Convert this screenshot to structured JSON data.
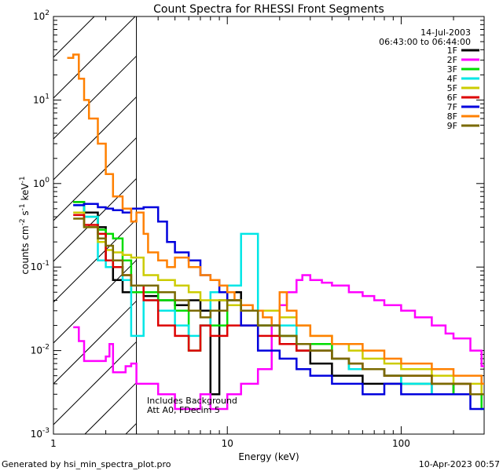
{
  "chart_data": {
    "type": "line",
    "title": "Count Spectra for RHESSI Front Segments",
    "xlabel": "Energy (keV)",
    "ylabel_main": "counts cm",
    "ylabel_sup1": "-2",
    "ylabel_mid": " s",
    "ylabel_sup2": "-1",
    "ylabel_end": " keV",
    "ylabel_sup3": "-1",
    "date": "14-Jul-2003",
    "time_range": "06:43:00 to 06:44:00",
    "annotation_line1": "Includes Background",
    "annotation_line2": "Att A0, FDecim 5",
    "footer_left": "Generated by hsi_min_spectra_plot.pro",
    "footer_right": "10-Apr-2023 00:57",
    "xscale": "log",
    "yscale": "log",
    "xlim": [
      1,
      300
    ],
    "ylim": [
      0.001,
      100
    ],
    "shaded_region_xlim": [
      1,
      3
    ],
    "x_ticks": [
      {
        "value": 1,
        "label": "1"
      },
      {
        "value": 10,
        "label": "10"
      },
      {
        "value": 100,
        "label": "100"
      }
    ],
    "y_ticks": [
      {
        "value": 0.001,
        "base": "10",
        "exp": "-3"
      },
      {
        "value": 0.01,
        "base": "10",
        "exp": "-2"
      },
      {
        "value": 0.1,
        "base": "10",
        "exp": "-1"
      },
      {
        "value": 1,
        "base": "10",
        "exp": "0"
      },
      {
        "value": 10,
        "base": "10",
        "exp": "1"
      },
      {
        "value": 100,
        "base": "10",
        "exp": "2"
      }
    ],
    "legend_placement": "top-right",
    "series": [
      {
        "name": "1F",
        "color": "#000000",
        "points": [
          [
            1.3,
            0.6
          ],
          [
            1.5,
            0.45
          ],
          [
            1.8,
            0.3
          ],
          [
            2.0,
            0.12
          ],
          [
            2.2,
            0.07
          ],
          [
            2.5,
            0.05
          ],
          [
            2.9,
            0.05
          ],
          [
            3.3,
            0.045
          ],
          [
            4,
            0.04
          ],
          [
            5,
            0.035
          ],
          [
            6,
            0.04
          ],
          [
            7,
            0.03
          ],
          [
            8,
            0.003
          ],
          [
            9,
            0.04
          ],
          [
            10,
            0.05
          ],
          [
            12,
            0.03
          ],
          [
            15,
            0.02
          ],
          [
            20,
            0.015
          ],
          [
            25,
            0.01
          ],
          [
            30,
            0.007
          ],
          [
            40,
            0.005
          ],
          [
            50,
            0.005
          ],
          [
            60,
            0.004
          ],
          [
            80,
            0.004
          ],
          [
            100,
            0.004
          ],
          [
            150,
            0.003
          ],
          [
            200,
            0.004
          ],
          [
            250,
            0.003
          ],
          [
            290,
            0.003
          ]
        ]
      },
      {
        "name": "2F",
        "color": "#ff00ff",
        "points": [
          [
            1.3,
            0.019
          ],
          [
            1.4,
            0.013
          ],
          [
            1.5,
            0.0075
          ],
          [
            1.8,
            0.0075
          ],
          [
            2.0,
            0.0085
          ],
          [
            2.1,
            0.012
          ],
          [
            2.2,
            0.0055
          ],
          [
            2.4,
            0.0055
          ],
          [
            2.6,
            0.0065
          ],
          [
            2.8,
            0.007
          ],
          [
            3.0,
            0.004
          ],
          [
            4,
            0.003
          ],
          [
            5,
            0.002
          ],
          [
            6,
            0.002
          ],
          [
            7,
            0.003
          ],
          [
            8,
            0.002
          ],
          [
            10,
            0.003
          ],
          [
            12,
            0.004
          ],
          [
            15,
            0.006
          ],
          [
            18,
            0.02
          ],
          [
            20,
            0.035
          ],
          [
            22,
            0.05
          ],
          [
            25,
            0.07
          ],
          [
            27,
            0.08
          ],
          [
            30,
            0.07
          ],
          [
            35,
            0.065
          ],
          [
            40,
            0.06
          ],
          [
            50,
            0.05
          ],
          [
            60,
            0.045
          ],
          [
            70,
            0.04
          ],
          [
            80,
            0.035
          ],
          [
            100,
            0.03
          ],
          [
            120,
            0.025
          ],
          [
            150,
            0.02
          ],
          [
            180,
            0.016
          ],
          [
            200,
            0.014
          ],
          [
            250,
            0.01
          ],
          [
            290,
            0.0065
          ]
        ]
      },
      {
        "name": "3F",
        "color": "#00dd00",
        "points": [
          [
            1.3,
            0.6
          ],
          [
            1.5,
            0.4
          ],
          [
            1.8,
            0.28
          ],
          [
            2.0,
            0.25
          ],
          [
            2.2,
            0.22
          ],
          [
            2.5,
            0.12
          ],
          [
            2.8,
            0.05
          ],
          [
            3.3,
            0.05
          ],
          [
            4,
            0.04
          ],
          [
            5,
            0.03
          ],
          [
            6,
            0.01
          ],
          [
            7,
            0.02
          ],
          [
            8,
            0.02
          ],
          [
            10,
            0.04
          ],
          [
            12,
            0.03
          ],
          [
            15,
            0.02
          ],
          [
            20,
            0.015
          ],
          [
            25,
            0.012
          ],
          [
            30,
            0.012
          ],
          [
            40,
            0.008
          ],
          [
            50,
            0.006
          ],
          [
            60,
            0.006
          ],
          [
            80,
            0.005
          ],
          [
            100,
            0.004
          ],
          [
            150,
            0.004
          ],
          [
            200,
            0.003
          ],
          [
            250,
            0.003
          ],
          [
            290,
            0.002
          ]
        ]
      },
      {
        "name": "4F",
        "color": "#00e6e6",
        "points": [
          [
            1.3,
            0.55
          ],
          [
            1.5,
            0.4
          ],
          [
            1.8,
            0.12
          ],
          [
            2.0,
            0.1
          ],
          [
            2.2,
            0.1
          ],
          [
            2.5,
            0.07
          ],
          [
            2.8,
            0.015
          ],
          [
            3.3,
            0.04
          ],
          [
            4,
            0.03
          ],
          [
            5,
            0.02
          ],
          [
            6,
            0.015
          ],
          [
            7,
            0.02
          ],
          [
            8,
            0.05
          ],
          [
            10,
            0.06
          ],
          [
            12,
            0.25
          ],
          [
            15,
            0.03
          ],
          [
            20,
            0.02
          ],
          [
            25,
            0.012
          ],
          [
            30,
            0.01
          ],
          [
            40,
            0.008
          ],
          [
            50,
            0.006
          ],
          [
            60,
            0.006
          ],
          [
            80,
            0.005
          ],
          [
            100,
            0.004
          ],
          [
            150,
            0.003
          ],
          [
            200,
            0.003
          ],
          [
            250,
            0.003
          ],
          [
            290,
            0.003
          ]
        ]
      },
      {
        "name": "5F",
        "color": "#cccc00",
        "points": [
          [
            1.3,
            0.45
          ],
          [
            1.5,
            0.3
          ],
          [
            1.8,
            0.2
          ],
          [
            2.0,
            0.16
          ],
          [
            2.2,
            0.15
          ],
          [
            2.5,
            0.14
          ],
          [
            2.8,
            0.13
          ],
          [
            3.3,
            0.08
          ],
          [
            4,
            0.07
          ],
          [
            5,
            0.06
          ],
          [
            6,
            0.05
          ],
          [
            7,
            0.04
          ],
          [
            8,
            0.04
          ],
          [
            10,
            0.035
          ],
          [
            12,
            0.03
          ],
          [
            15,
            0.03
          ],
          [
            20,
            0.025
          ],
          [
            25,
            0.02
          ],
          [
            30,
            0.015
          ],
          [
            40,
            0.012
          ],
          [
            50,
            0.01
          ],
          [
            60,
            0.008
          ],
          [
            80,
            0.007
          ],
          [
            100,
            0.006
          ],
          [
            150,
            0.005
          ],
          [
            200,
            0.004
          ],
          [
            250,
            0.004
          ],
          [
            290,
            0.003
          ]
        ]
      },
      {
        "name": "6F",
        "color": "#dd0000",
        "points": [
          [
            1.3,
            0.42
          ],
          [
            1.5,
            0.32
          ],
          [
            1.8,
            0.25
          ],
          [
            2.0,
            0.12
          ],
          [
            2.2,
            0.1
          ],
          [
            2.5,
            0.08
          ],
          [
            2.8,
            0.06
          ],
          [
            3.3,
            0.04
          ],
          [
            4,
            0.02
          ],
          [
            5,
            0.015
          ],
          [
            6,
            0.01
          ],
          [
            7,
            0.02
          ],
          [
            8,
            0.015
          ],
          [
            10,
            0.02
          ],
          [
            12,
            0.02
          ],
          [
            15,
            0.015
          ],
          [
            20,
            0.012
          ],
          [
            25,
            0.01
          ],
          [
            30,
            0.01
          ],
          [
            40,
            0.008
          ],
          [
            50,
            0.007
          ],
          [
            60,
            0.006
          ],
          [
            80,
            0.005
          ],
          [
            100,
            0.005
          ],
          [
            150,
            0.004
          ],
          [
            200,
            0.004
          ],
          [
            250,
            0.003
          ],
          [
            290,
            0.003
          ]
        ]
      },
      {
        "name": "7F",
        "color": "#0000dd",
        "points": [
          [
            1.3,
            0.55
          ],
          [
            1.5,
            0.57
          ],
          [
            1.8,
            0.52
          ],
          [
            2.0,
            0.5
          ],
          [
            2.2,
            0.48
          ],
          [
            2.5,
            0.45
          ],
          [
            2.8,
            0.5
          ],
          [
            3.3,
            0.52
          ],
          [
            4,
            0.35
          ],
          [
            4.5,
            0.2
          ],
          [
            5,
            0.15
          ],
          [
            6,
            0.12
          ],
          [
            7,
            0.08
          ],
          [
            8,
            0.07
          ],
          [
            9,
            0.05
          ],
          [
            10,
            0.04
          ],
          [
            12,
            0.02
          ],
          [
            15,
            0.01
          ],
          [
            20,
            0.008
          ],
          [
            25,
            0.006
          ],
          [
            30,
            0.005
          ],
          [
            40,
            0.004
          ],
          [
            50,
            0.004
          ],
          [
            60,
            0.003
          ],
          [
            80,
            0.004
          ],
          [
            100,
            0.003
          ],
          [
            150,
            0.003
          ],
          [
            200,
            0.003
          ],
          [
            250,
            0.002
          ],
          [
            290,
            0.002
          ]
        ]
      },
      {
        "name": "8F",
        "color": "#ff8000",
        "points": [
          [
            1.2,
            32
          ],
          [
            1.3,
            35
          ],
          [
            1.4,
            18
          ],
          [
            1.5,
            10
          ],
          [
            1.6,
            6
          ],
          [
            1.8,
            3
          ],
          [
            2.0,
            1.3
          ],
          [
            2.2,
            0.7
          ],
          [
            2.5,
            0.5
          ],
          [
            2.8,
            0.35
          ],
          [
            3.0,
            0.45
          ],
          [
            3.3,
            0.25
          ],
          [
            3.5,
            0.15
          ],
          [
            4,
            0.12
          ],
          [
            4.5,
            0.1
          ],
          [
            5,
            0.13
          ],
          [
            5.5,
            0.13
          ],
          [
            6,
            0.1
          ],
          [
            7,
            0.08
          ],
          [
            8,
            0.07
          ],
          [
            9,
            0.06
          ],
          [
            10,
            0.05
          ],
          [
            11,
            0.04
          ],
          [
            12,
            0.035
          ],
          [
            14,
            0.03
          ],
          [
            16,
            0.025
          ],
          [
            18,
            0.02
          ],
          [
            20,
            0.05
          ],
          [
            22,
            0.03
          ],
          [
            25,
            0.02
          ],
          [
            30,
            0.015
          ],
          [
            40,
            0.012
          ],
          [
            50,
            0.012
          ],
          [
            60,
            0.01
          ],
          [
            80,
            0.008
          ],
          [
            100,
            0.007
          ],
          [
            150,
            0.006
          ],
          [
            200,
            0.005
          ],
          [
            250,
            0.005
          ],
          [
            290,
            0.004
          ]
        ]
      },
      {
        "name": "9F",
        "color": "#7a6a00",
        "points": [
          [
            1.3,
            0.38
          ],
          [
            1.5,
            0.3
          ],
          [
            1.8,
            0.22
          ],
          [
            2.0,
            0.18
          ],
          [
            2.2,
            0.12
          ],
          [
            2.5,
            0.08
          ],
          [
            2.8,
            0.06
          ],
          [
            3.3,
            0.06
          ],
          [
            4,
            0.05
          ],
          [
            5,
            0.04
          ],
          [
            6,
            0.03
          ],
          [
            7,
            0.025
          ],
          [
            8,
            0.03
          ],
          [
            10,
            0.04
          ],
          [
            12,
            0.03
          ],
          [
            15,
            0.02
          ],
          [
            20,
            0.015
          ],
          [
            25,
            0.012
          ],
          [
            30,
            0.01
          ],
          [
            40,
            0.008
          ],
          [
            50,
            0.007
          ],
          [
            60,
            0.006
          ],
          [
            80,
            0.005
          ],
          [
            100,
            0.005
          ],
          [
            150,
            0.004
          ],
          [
            200,
            0.004
          ],
          [
            250,
            0.003
          ],
          [
            290,
            0.003
          ]
        ]
      }
    ]
  }
}
